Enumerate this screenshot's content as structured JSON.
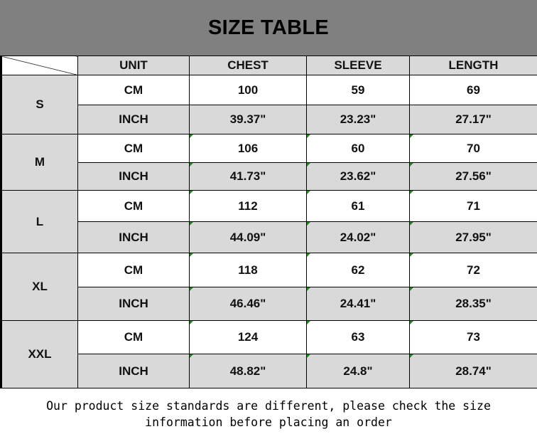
{
  "title": "SIZE TABLE",
  "columns": [
    "UNIT",
    "CHEST",
    "SLEEVE",
    "LENGTH"
  ],
  "sizes": [
    {
      "size": "S",
      "rows": [
        {
          "unit": "CM",
          "chest": "100",
          "sleeve": "59",
          "length": "69"
        },
        {
          "unit": "INCH",
          "chest": "39.37\"",
          "sleeve": "23.23\"",
          "length": "27.17\""
        }
      ]
    },
    {
      "size": "M",
      "rows": [
        {
          "unit": "CM",
          "chest": "106",
          "sleeve": "60",
          "length": "70"
        },
        {
          "unit": "INCH",
          "chest": "41.73\"",
          "sleeve": "23.62\"",
          "length": "27.56\""
        }
      ]
    },
    {
      "size": "L",
      "rows": [
        {
          "unit": "CM",
          "chest": "112",
          "sleeve": "61",
          "length": "71"
        },
        {
          "unit": "INCH",
          "chest": "44.09\"",
          "sleeve": "24.02\"",
          "length": "27.95\""
        }
      ]
    },
    {
      "size": "XL",
      "rows": [
        {
          "unit": "CM",
          "chest": "118",
          "sleeve": "62",
          "length": "72"
        },
        {
          "unit": "INCH",
          "chest": "46.46\"",
          "sleeve": "24.41\"",
          "length": "28.35\""
        }
      ]
    },
    {
      "size": "XXL",
      "rows": [
        {
          "unit": "CM",
          "chest": "124",
          "sleeve": "63",
          "length": "73"
        },
        {
          "unit": "INCH",
          "chest": "48.82\"",
          "sleeve": "24.8\"",
          "length": "28.74\""
        }
      ]
    }
  ],
  "footer": "Our product size standards are different, please check the size information before placing an order",
  "colors": {
    "header_bg": "#808080",
    "cell_gray": "#d9d9d9",
    "marker_green": "#1a8a1a"
  }
}
